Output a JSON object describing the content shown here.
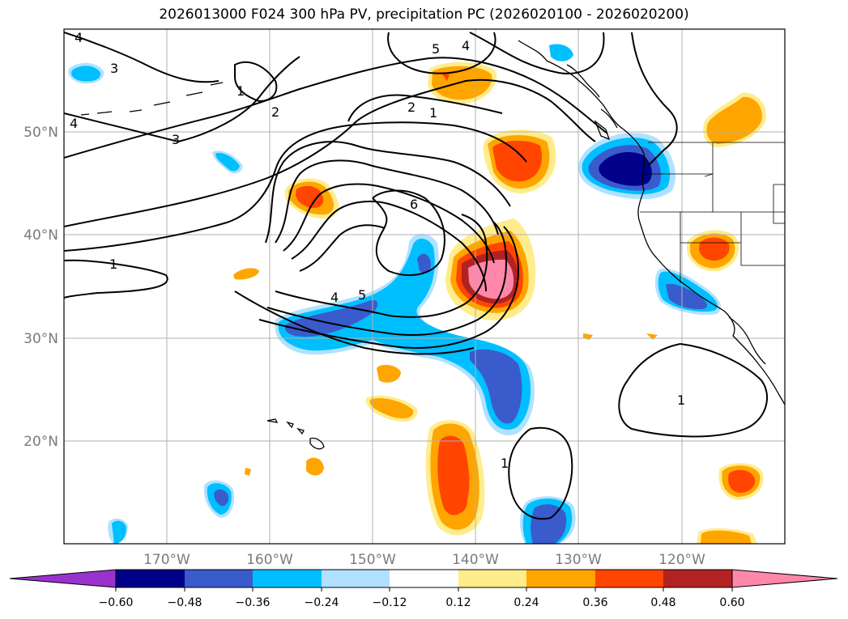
{
  "title": "2026013000 F024 300 hPa PV, precipitation PC (2026020100 - 2026020200)",
  "axes": {
    "lon_labels": [
      "170°W",
      "160°W",
      "150°W",
      "140°W",
      "130°W",
      "120°W"
    ],
    "lat_labels": [
      "50°N",
      "40°N",
      "30°N",
      "20°N"
    ],
    "lon_range": [
      -180,
      -110
    ],
    "lat_range": [
      10,
      60
    ],
    "gridlines": true
  },
  "colorbar": {
    "ticks": [
      "−0.60",
      "−0.48",
      "−0.36",
      "−0.24",
      "−0.12",
      "0.12",
      "0.24",
      "0.36",
      "0.48",
      "0.60"
    ],
    "colors": [
      "#9932cc",
      "#00008b",
      "#3a5bcc",
      "#00bfff",
      "#b0e2ff",
      "#ffffff",
      "#ffec8b",
      "#ffa500",
      "#ff4500",
      "#b22222",
      "#ff88aa"
    ],
    "extend": "both"
  },
  "contour_labels": {
    "pv_1": "1",
    "pv_2": "2",
    "pv_3": "3",
    "pv_4": "4",
    "pv_5": "5",
    "pv_6": "6"
  }
}
